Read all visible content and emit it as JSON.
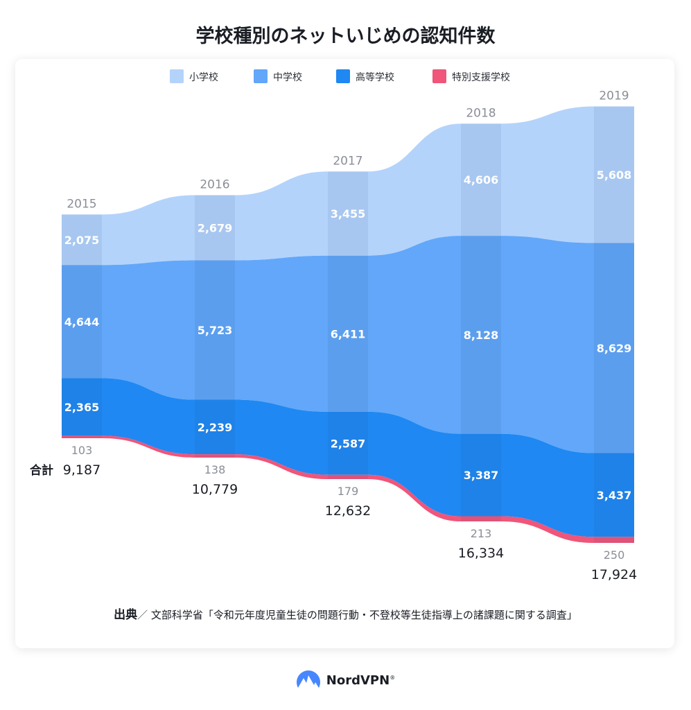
{
  "title": "学校種別のネットいじめの認知件数",
  "chart_data": {
    "type": "area",
    "title": "学校種別のネットいじめの認知件数",
    "categories": [
      "2015",
      "2016",
      "2017",
      "2018",
      "2019"
    ],
    "series": [
      {
        "name": "特別支援学校",
        "values": [
          103,
          138,
          179,
          213,
          250
        ],
        "color": "#f0557a"
      },
      {
        "name": "高等学校",
        "values": [
          2365,
          2239,
          2587,
          3387,
          3437
        ],
        "color": "#1f88f2"
      },
      {
        "name": "中学校",
        "values": [
          4644,
          5723,
          6411,
          8128,
          8629
        ],
        "color": "#62a7f9"
      },
      {
        "name": "小学校",
        "values": [
          2075,
          2679,
          3455,
          4606,
          5608
        ],
        "color": "#b4d3fb"
      }
    ],
    "totals": [
      9187,
      10779,
      12632,
      16334,
      17924
    ],
    "total_label": "合計",
    "legend_order": [
      "小学校",
      "中学校",
      "高等学校",
      "特別支援学校"
    ],
    "legend": "top-center",
    "stacked": true
  },
  "source": {
    "label": "出典",
    "separator": "／",
    "text": "文部科学省「令和元年度児童生徒の問題行動・不登校等生徒指導上の諸課題に関する調査」"
  },
  "brand": {
    "name": "NordVPN",
    "mark": "®"
  }
}
